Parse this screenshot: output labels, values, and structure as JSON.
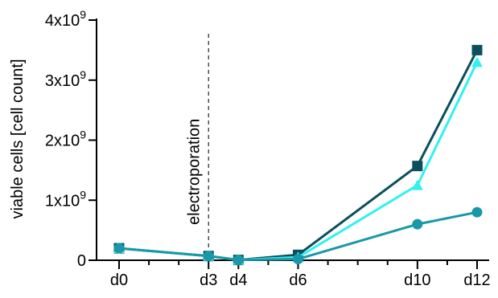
{
  "chart_data": {
    "type": "line",
    "xlabel": "",
    "ylabel": "viable cells [cell count]",
    "ylim": [
      0,
      4000000000
    ],
    "xlim": [
      0,
      12
    ],
    "grid": false,
    "legend": "none",
    "x_ticks": [
      {
        "value": 0,
        "label": "d0"
      },
      {
        "value": 3,
        "label": "d3"
      },
      {
        "value": 4,
        "label": "d4"
      },
      {
        "value": 6,
        "label": "d6"
      },
      {
        "value": 10,
        "label": "d10"
      },
      {
        "value": 12,
        "label": "d12"
      }
    ],
    "x_minor_ticks": [
      1,
      2,
      5,
      7,
      8,
      9,
      11
    ],
    "y_ticks": [
      {
        "value": 0,
        "base": "0",
        "exp": ""
      },
      {
        "value": 1000000000,
        "base": "1x10",
        "exp": "9"
      },
      {
        "value": 2000000000,
        "base": "2x10",
        "exp": "9"
      },
      {
        "value": 3000000000,
        "base": "3x10",
        "exp": "9"
      },
      {
        "value": 4000000000,
        "base": "4x10",
        "exp": "9"
      }
    ],
    "annotation": {
      "text": "electroporation",
      "x": 3
    },
    "series": [
      {
        "marker": "square",
        "color": "#0b4f5c",
        "points": [
          [
            0,
            200000000
          ],
          [
            3,
            70000000
          ],
          [
            4,
            5000000
          ],
          [
            6,
            90000000
          ],
          [
            10,
            1570000000
          ],
          [
            12,
            3500000000
          ]
        ]
      },
      {
        "marker": "triangle",
        "color": "#33f0f0",
        "points": [
          [
            0,
            200000000
          ],
          [
            3,
            70000000
          ],
          [
            4,
            5000000
          ],
          [
            6,
            50000000
          ],
          [
            10,
            1250000000
          ],
          [
            12,
            3300000000
          ]
        ]
      },
      {
        "marker": "circle",
        "color": "#1898a8",
        "points": [
          [
            0,
            200000000
          ],
          [
            3,
            70000000
          ],
          [
            4,
            5000000
          ],
          [
            6,
            20000000
          ],
          [
            10,
            600000000
          ],
          [
            12,
            800000000
          ]
        ]
      }
    ]
  }
}
